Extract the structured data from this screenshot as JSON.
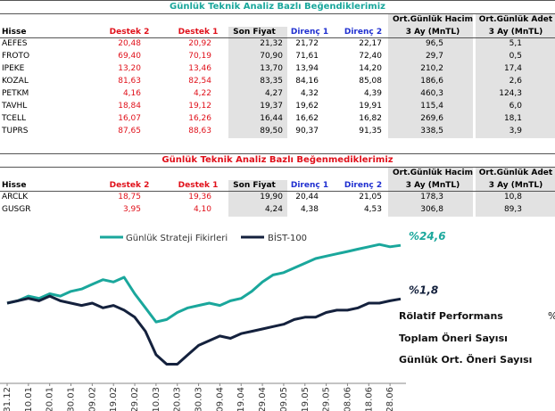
{
  "table1": {
    "title": "Günlük Teknik Analiz Bazlı Beğendiklerimiz",
    "group_headers": [
      "Ort.Günlük Hacim",
      "Ort.Günlük Adet"
    ],
    "columns": [
      "Hisse",
      "Destek 2",
      "Destek 1",
      "Son Fiyat",
      "Direnç 1",
      "Direnç 2",
      "3 Ay (MnTL)",
      "3 Ay (MnTL)"
    ],
    "rows": [
      [
        "AEFES",
        "20,48",
        "20,92",
        "21,32",
        "21,72",
        "22,17",
        "96,5",
        "5,1"
      ],
      [
        "FROTO",
        "69,40",
        "70,19",
        "70,90",
        "71,61",
        "72,40",
        "29,7",
        "0,5"
      ],
      [
        "IPEKE",
        "13,20",
        "13,46",
        "13,70",
        "13,94",
        "14,20",
        "210,2",
        "17,4"
      ],
      [
        "KOZAL",
        "81,63",
        "82,54",
        "83,35",
        "84,16",
        "85,08",
        "186,6",
        "2,6"
      ],
      [
        "PETKM",
        "4,16",
        "4,22",
        "4,27",
        "4,32",
        "4,39",
        "460,3",
        "124,3"
      ],
      [
        "TAVHL",
        "18,84",
        "19,12",
        "19,37",
        "19,62",
        "19,91",
        "115,4",
        "6,0"
      ],
      [
        "TCELL",
        "16,07",
        "16,26",
        "16,44",
        "16,62",
        "16,82",
        "269,6",
        "18,1"
      ],
      [
        "TUPRS",
        "87,65",
        "88,63",
        "89,50",
        "90,37",
        "91,35",
        "338,5",
        "3,9"
      ]
    ]
  },
  "table2": {
    "title": "Günlük Teknik Analiz Bazlı Beğenmediklerimiz",
    "group_headers": [
      "Ort.Günlük Hacim",
      "Ort.Günlük Adet"
    ],
    "columns": [
      "Hisse",
      "Destek 2",
      "Destek 1",
      "Son Fiyat",
      "Direnç 1",
      "Direnç 2",
      "3 Ay (MnTL)",
      "3 Ay (MnTL)"
    ],
    "rows": [
      [
        "ARCLK",
        "18,75",
        "19,36",
        "19,90",
        "20,44",
        "21,05",
        "178,3",
        "10,8"
      ],
      [
        "GUSGR",
        "3,95",
        "4,10",
        "4,24",
        "4,38",
        "4,53",
        "306,8",
        "89,3"
      ]
    ]
  },
  "chart_data": {
    "type": "line",
    "categories": [
      "31.12",
      null,
      "10.01",
      null,
      "20.01",
      null,
      "30.01",
      null,
      "09.02",
      null,
      "19.02",
      null,
      "29.02",
      null,
      "10.03",
      null,
      "20.03",
      null,
      "30.03",
      null,
      "09.04",
      null,
      "19.04",
      null,
      "29.04",
      null,
      "09.05",
      null,
      "19.05",
      null,
      "29.05",
      null,
      "08.06",
      null,
      "18.06",
      null,
      "28.06",
      null
    ],
    "ylim": [
      -30,
      30
    ],
    "series": [
      {
        "name": "Günlük Strateji Fikirleri",
        "color": "#1aa79c",
        "end_label": "%24,6",
        "values": [
          0,
          1,
          3,
          2,
          4,
          3,
          5,
          6,
          8,
          10,
          9,
          11,
          4,
          -2,
          -8,
          -7,
          -4,
          -2,
          -1,
          0,
          -1,
          1,
          2,
          5,
          9,
          12,
          13,
          15,
          17,
          19,
          20,
          21,
          22,
          23,
          24,
          25,
          24,
          24.6
        ]
      },
      {
        "name": "BİST-100",
        "color": "#14213d",
        "end_label": "%1,8",
        "values": [
          0,
          1,
          2,
          1,
          3,
          1,
          0,
          -1,
          0,
          -2,
          -1,
          -3,
          -6,
          -12,
          -22,
          -26,
          -26,
          -22,
          -18,
          -16,
          -14,
          -15,
          -13,
          -12,
          -11,
          -10,
          -9,
          -7,
          -6,
          -6,
          -4,
          -3,
          -3,
          -2,
          0,
          0,
          1,
          1.8
        ]
      }
    ],
    "annotations": [
      "Rölatif Performans",
      "%",
      "Toplam Öneri Sayısı",
      "Günlük Ort. Öneri Sayısı"
    ]
  }
}
